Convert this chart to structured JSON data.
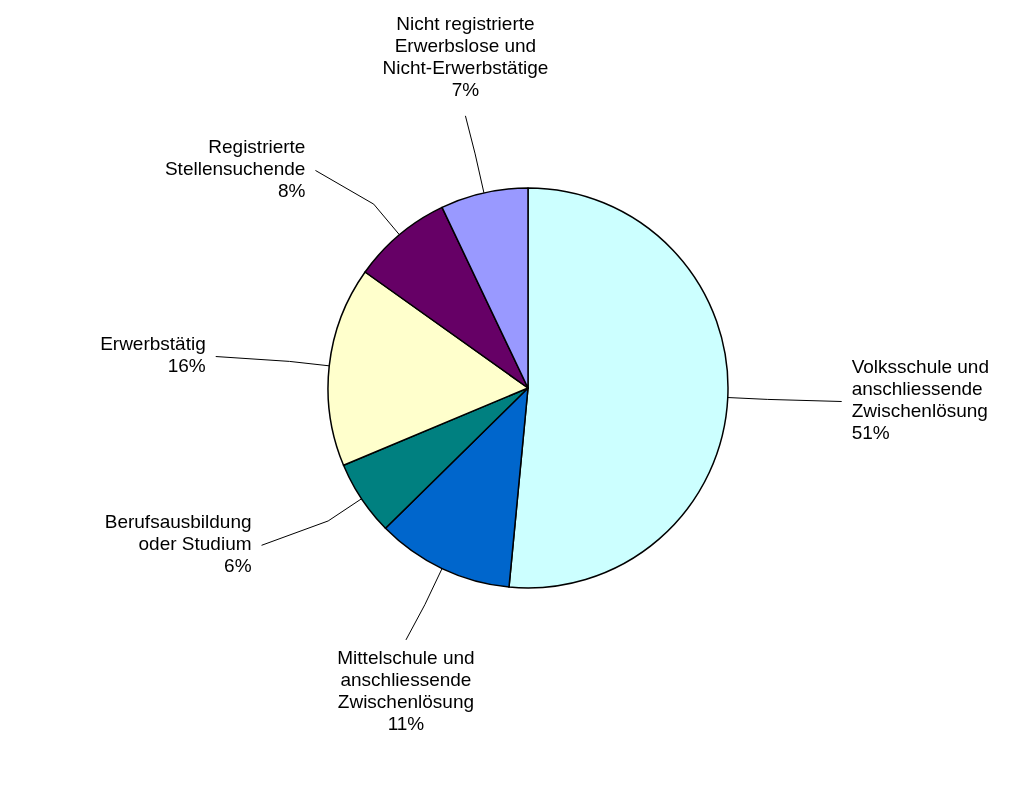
{
  "chart_data": {
    "type": "pie",
    "categories": [
      "Volksschule und\nanschliessende\nZwischenlösung",
      "Mittelschule und\nanschliessende\nZwischenlösung",
      "Berufsausbildung\noder Studium",
      "Erwerbstätig",
      "Registrierte\nStellensuchende",
      "Nicht registrierte\nErwerbslose und\nNicht-Erwerbstätige"
    ],
    "values": [
      51,
      11,
      6,
      16,
      8,
      7
    ],
    "colors": [
      "#ccffff",
      "#0066cc",
      "#008080",
      "#ffffcc",
      "#660066",
      "#9999ff"
    ],
    "value_labels": [
      "51%",
      "11%",
      "6%",
      "16%",
      "8%",
      "7%"
    ]
  }
}
